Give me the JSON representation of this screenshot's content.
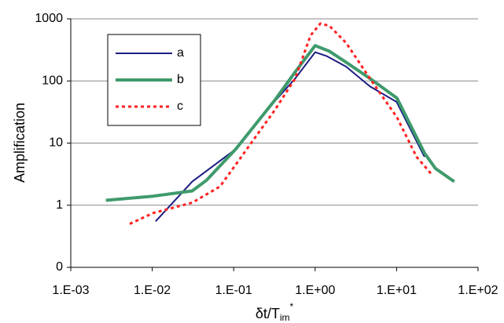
{
  "chart_data": {
    "type": "line",
    "x_label": [
      "δt/T",
      "im",
      "*"
    ],
    "y_label": "Amplification",
    "log_x": true,
    "log_y": true,
    "grid": true,
    "xlim": [
      0.001,
      100
    ],
    "xticks": [
      {
        "value": 0.001,
        "label": "1.E-03"
      },
      {
        "value": 0.01,
        "label": "1.E-02"
      },
      {
        "value": 0.1,
        "label": "1.E-01"
      },
      {
        "value": 1,
        "label": "1.E+00"
      },
      {
        "value": 10,
        "label": "1.E+01"
      },
      {
        "value": 100,
        "label": "1.E+02"
      }
    ],
    "ylim": [
      0.1,
      1000
    ],
    "yticks": [
      {
        "value": 0.1,
        "label": "0"
      },
      1,
      10,
      100,
      1000
    ],
    "legend": "upper left",
    "series": [
      {
        "name": "a",
        "color": "#1c1c84",
        "style": "solid",
        "width": 2,
        "x": [
          0.011,
          0.031,
          0.106,
          0.31,
          0.57,
          1.0,
          1.4,
          2.4,
          4.7,
          10,
          22
        ],
        "values": [
          0.55,
          2.4,
          8,
          45,
          110,
          290,
          250,
          170,
          82,
          46,
          6
        ]
      },
      {
        "name": "b",
        "color": "#3f9a6c",
        "style": "solid",
        "width": 4,
        "x": [
          0.0027,
          0.0103,
          0.031,
          0.046,
          0.106,
          0.32,
          0.57,
          1.0,
          1.5,
          2.4,
          4.7,
          10.1,
          22,
          30,
          51
        ],
        "values": [
          1.2,
          1.4,
          1.7,
          2.5,
          8,
          49,
          140,
          370,
          300,
          200,
          110,
          53,
          6.9,
          3.9,
          2.4
        ]
      },
      {
        "name": "c",
        "color": "#ff2020",
        "style": "dashed",
        "width": 3,
        "x": [
          0.0053,
          0.0103,
          0.031,
          0.068,
          0.106,
          0.32,
          0.57,
          0.88,
          1.16,
          1.5,
          2.4,
          4.7,
          10.1,
          17.6,
          26.6
        ],
        "values": [
          0.5,
          0.75,
          1.1,
          2.0,
          4.5,
          34,
          110,
          540,
          840,
          770,
          410,
          110,
          26,
          6,
          3.2
        ]
      }
    ]
  }
}
